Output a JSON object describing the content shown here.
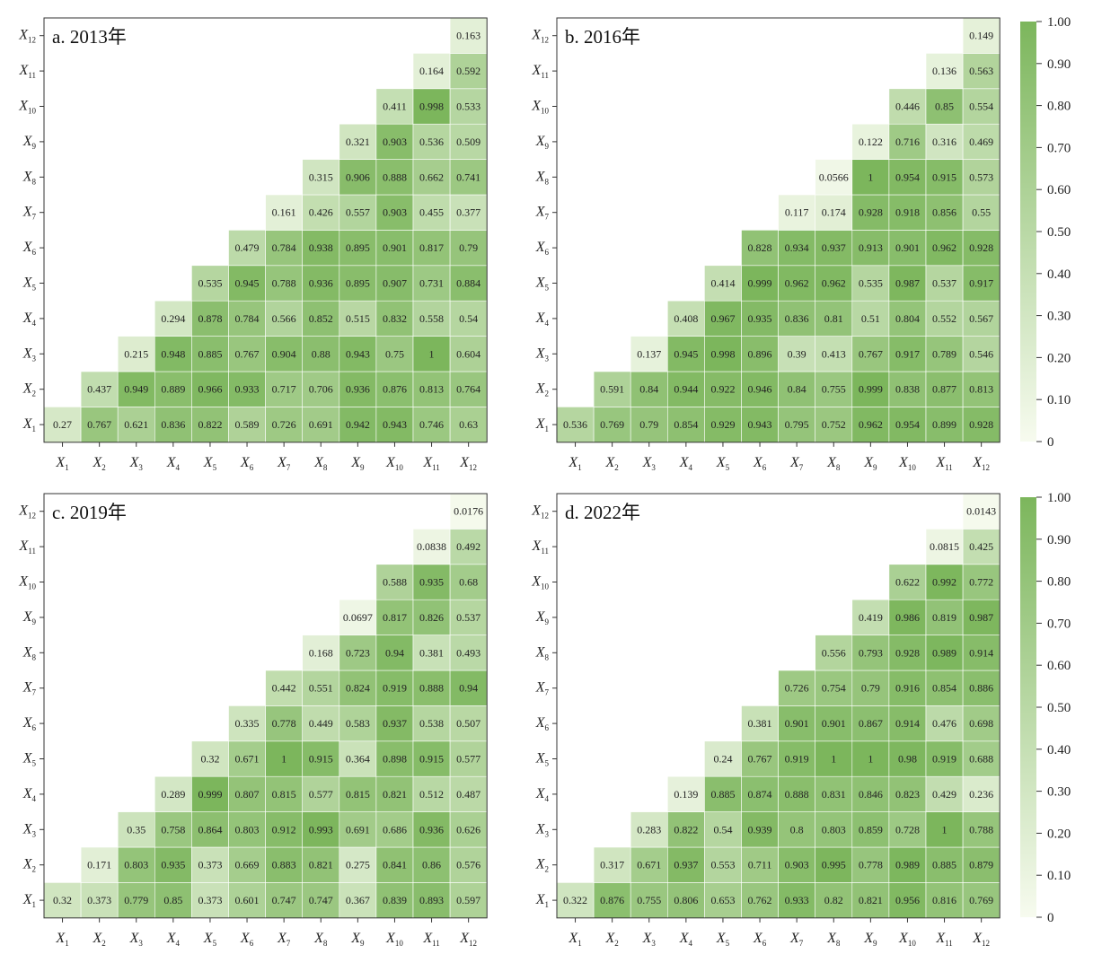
{
  "chart_data": [
    {
      "type": "heatmap",
      "title": "a. 2013年",
      "x_categories": [
        "X1",
        "X2",
        "X3",
        "X4",
        "X5",
        "X6",
        "X7",
        "X8",
        "X9",
        "X10",
        "X11",
        "X12"
      ],
      "y_categories": [
        "X1",
        "X2",
        "X3",
        "X4",
        "X5",
        "X6",
        "X7",
        "X8",
        "X9",
        "X10",
        "X11",
        "X12"
      ],
      "values": [
        [
          "0.27",
          "0.767",
          "0.621",
          "0.836",
          "0.822",
          "0.589",
          "0.726",
          "0.691",
          "0.942",
          "0.943",
          "0.746",
          "0.63"
        ],
        [
          "0.437",
          "0.949",
          "0.889",
          "0.966",
          "0.933",
          "0.717",
          "0.706",
          "0.936",
          "0.876",
          "0.813",
          "0.764"
        ],
        [
          "0.215",
          "0.948",
          "0.885",
          "0.767",
          "0.904",
          "0.88",
          "0.943",
          "0.75",
          "1",
          "0.604"
        ],
        [
          "0.294",
          "0.878",
          "0.784",
          "0.566",
          "0.852",
          "0.515",
          "0.832",
          "0.558",
          "0.54"
        ],
        [
          "0.535",
          "0.945",
          "0.788",
          "0.936",
          "0.895",
          "0.907",
          "0.731",
          "0.884"
        ],
        [
          "0.479",
          "0.784",
          "0.938",
          "0.895",
          "0.901",
          "0.817",
          "0.79"
        ],
        [
          "0.161",
          "0.426",
          "0.557",
          "0.903",
          "0.455",
          "0.377"
        ],
        [
          "0.315",
          "0.906",
          "0.888",
          "0.662",
          "0.741"
        ],
        [
          "0.321",
          "0.903",
          "0.536",
          "0.509"
        ],
        [
          "0.411",
          "0.998",
          "0.533"
        ],
        [
          "0.164",
          "0.592"
        ],
        [
          "0.163"
        ]
      ]
    },
    {
      "type": "heatmap",
      "title": "b. 2016年",
      "x_categories": [
        "X1",
        "X2",
        "X3",
        "X4",
        "X5",
        "X6",
        "X7",
        "X8",
        "X9",
        "X10",
        "X11",
        "X12"
      ],
      "y_categories": [
        "X1",
        "X2",
        "X3",
        "X4",
        "X5",
        "X6",
        "X7",
        "X8",
        "X9",
        "X10",
        "X11",
        "X12"
      ],
      "values": [
        [
          "0.536",
          "0.769",
          "0.79",
          "0.854",
          "0.929",
          "0.943",
          "0.795",
          "0.752",
          "0.962",
          "0.954",
          "0.899",
          "0.928"
        ],
        [
          "0.591",
          "0.84",
          "0.944",
          "0.922",
          "0.946",
          "0.84",
          "0.755",
          "0.999",
          "0.838",
          "0.877",
          "0.813"
        ],
        [
          "0.137",
          "0.945",
          "0.998",
          "0.896",
          "0.39",
          "0.413",
          "0.767",
          "0.917",
          "0.789",
          "0.546"
        ],
        [
          "0.408",
          "0.967",
          "0.935",
          "0.836",
          "0.81",
          "0.51",
          "0.804",
          "0.552",
          "0.567"
        ],
        [
          "0.414",
          "0.999",
          "0.962",
          "0.962",
          "0.535",
          "0.987",
          "0.537",
          "0.917"
        ],
        [
          "0.828",
          "0.934",
          "0.937",
          "0.913",
          "0.901",
          "0.962",
          "0.928"
        ],
        [
          "0.117",
          "0.174",
          "0.928",
          "0.918",
          "0.856",
          "0.55"
        ],
        [
          "0.0566",
          "1",
          "0.954",
          "0.915",
          "0.573"
        ],
        [
          "0.122",
          "0.716",
          "0.316",
          "0.469"
        ],
        [
          "0.446",
          "0.85",
          "0.554"
        ],
        [
          "0.136",
          "0.563"
        ],
        [
          "0.149"
        ]
      ]
    },
    {
      "type": "heatmap",
      "title": "c. 2019年",
      "x_categories": [
        "X1",
        "X2",
        "X3",
        "X4",
        "X5",
        "X6",
        "X7",
        "X8",
        "X9",
        "X10",
        "X11",
        "X12"
      ],
      "y_categories": [
        "X1",
        "X2",
        "X3",
        "X4",
        "X5",
        "X6",
        "X7",
        "X8",
        "X9",
        "X10",
        "X11",
        "X12"
      ],
      "values": [
        [
          "0.32",
          "0.373",
          "0.779",
          "0.85",
          "0.373",
          "0.601",
          "0.747",
          "0.747",
          "0.367",
          "0.839",
          "0.893",
          "0.597"
        ],
        [
          "0.171",
          "0.803",
          "0.935",
          "0.373",
          "0.669",
          "0.883",
          "0.821",
          "0.275",
          "0.841",
          "0.86",
          "0.576"
        ],
        [
          "0.35",
          "0.758",
          "0.864",
          "0.803",
          "0.912",
          "0.993",
          "0.691",
          "0.686",
          "0.936",
          "0.626"
        ],
        [
          "0.289",
          "0.999",
          "0.807",
          "0.815",
          "0.577",
          "0.815",
          "0.821",
          "0.512",
          "0.487"
        ],
        [
          "0.32",
          "0.671",
          "1",
          "0.915",
          "0.364",
          "0.898",
          "0.915",
          "0.577"
        ],
        [
          "0.335",
          "0.778",
          "0.449",
          "0.583",
          "0.937",
          "0.538",
          "0.507"
        ],
        [
          "0.442",
          "0.551",
          "0.824",
          "0.919",
          "0.888",
          "0.94"
        ],
        [
          "0.168",
          "0.723",
          "0.94",
          "0.381",
          "0.493"
        ],
        [
          "0.0697",
          "0.817",
          "0.826",
          "0.537"
        ],
        [
          "0.588",
          "0.935",
          "0.68"
        ],
        [
          "0.0838",
          "0.492"
        ],
        [
          "0.0176"
        ]
      ]
    },
    {
      "type": "heatmap",
      "title": "d. 2022年",
      "x_categories": [
        "X1",
        "X2",
        "X3",
        "X4",
        "X5",
        "X6",
        "X7",
        "X8",
        "X9",
        "X10",
        "X11",
        "X12"
      ],
      "y_categories": [
        "X1",
        "X2",
        "X3",
        "X4",
        "X5",
        "X6",
        "X7",
        "X8",
        "X9",
        "X10",
        "X11",
        "X12"
      ],
      "values": [
        [
          "0.322",
          "0.876",
          "0.755",
          "0.806",
          "0.653",
          "0.762",
          "0.933",
          "0.82",
          "0.821",
          "0.956",
          "0.816",
          "0.769"
        ],
        [
          "0.317",
          "0.671",
          "0.937",
          "0.553",
          "0.711",
          "0.903",
          "0.995",
          "0.778",
          "0.989",
          "0.885",
          "0.879"
        ],
        [
          "0.283",
          "0.822",
          "0.54",
          "0.939",
          "0.8",
          "0.803",
          "0.859",
          "0.728",
          "1",
          "0.788"
        ],
        [
          "0.139",
          "0.885",
          "0.874",
          "0.888",
          "0.831",
          "0.846",
          "0.823",
          "0.429",
          "0.236"
        ],
        [
          "0.24",
          "0.767",
          "0.919",
          "1",
          "1",
          "0.98",
          "0.919",
          "0.688"
        ],
        [
          "0.381",
          "0.901",
          "0.901",
          "0.867",
          "0.914",
          "0.476",
          "0.698"
        ],
        [
          "0.726",
          "0.754",
          "0.79",
          "0.916",
          "0.854",
          "0.886"
        ],
        [
          "0.556",
          "0.793",
          "0.928",
          "0.989",
          "0.914"
        ],
        [
          "0.419",
          "0.986",
          "0.819",
          "0.987"
        ],
        [
          "0.622",
          "0.992",
          "0.772"
        ],
        [
          "0.0815",
          "0.425"
        ],
        [
          "0.0143"
        ]
      ]
    }
  ],
  "colorbar": {
    "ticks": [
      "0",
      "0.10",
      "0.20",
      "0.30",
      "0.40",
      "0.50",
      "0.60",
      "0.70",
      "0.80",
      "0.90",
      "1.00"
    ],
    "color_low": "#f7fbef",
    "color_high": "#7cb65c"
  }
}
